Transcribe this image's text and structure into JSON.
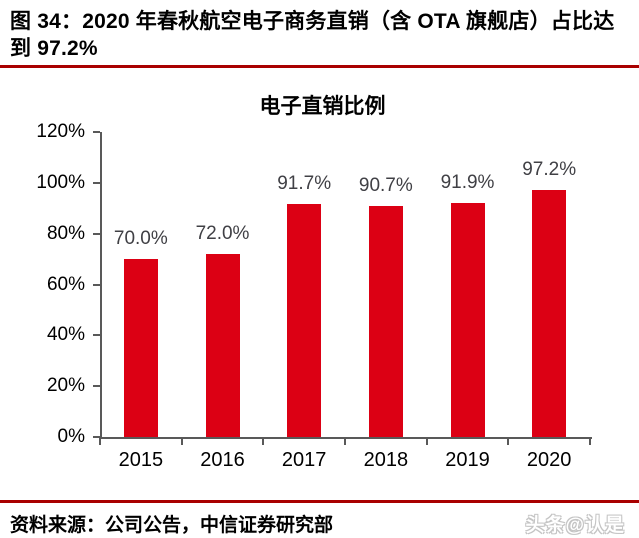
{
  "figure": {
    "caption": "图 34：2020 年春秋航空电子商务直销（含 OTA 旗舰店）占比达到 97.2%",
    "source": "资料来源：公司公告，中信证券研究部",
    "watermark": "头条@认是"
  },
  "colors": {
    "bar": "#dc0014",
    "divider_rule": "#a90000",
    "axis": "#595959",
    "data_label": "#404045",
    "tick_label": "#000000"
  },
  "chart_data": {
    "type": "bar",
    "title": "电子直销比例",
    "categories": [
      "2015",
      "2016",
      "2017",
      "2018",
      "2019",
      "2020"
    ],
    "values": [
      70.0,
      72.0,
      91.7,
      90.7,
      91.9,
      97.2
    ],
    "value_labels": [
      "70.0%",
      "72.0%",
      "91.7%",
      "90.7%",
      "91.9%",
      "97.2%"
    ],
    "xlabel": "",
    "ylabel": "",
    "ylim": [
      0,
      120
    ],
    "ytick_values": [
      120,
      100,
      80,
      60,
      40,
      20,
      0
    ],
    "ytick_labels": [
      "120%",
      "100%",
      "80%",
      "60%",
      "40%",
      "20%",
      "0%"
    ],
    "grid": false,
    "legend_position": "none"
  }
}
